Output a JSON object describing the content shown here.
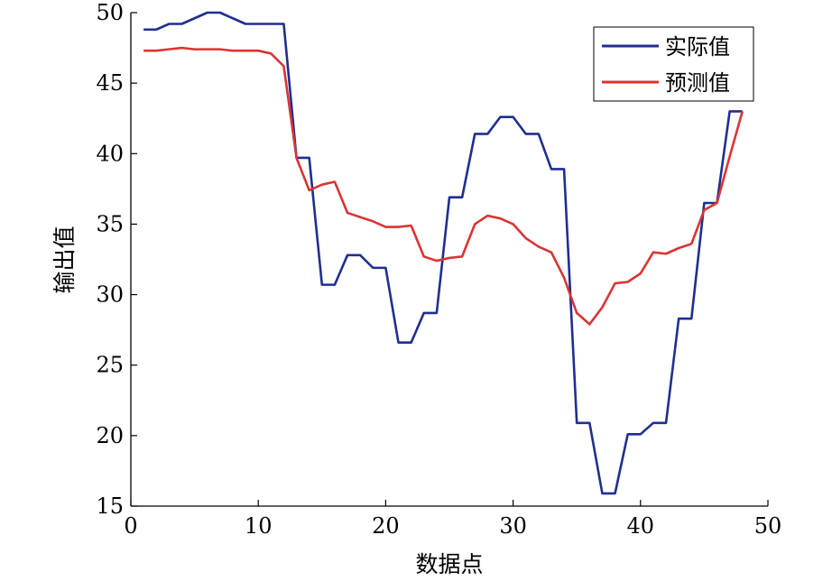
{
  "chart_data": {
    "type": "line",
    "xlabel": "数据点",
    "ylabel": "输出值",
    "xlim": [
      0,
      50
    ],
    "ylim": [
      15,
      50
    ],
    "xticks": [
      "0",
      "10",
      "20",
      "30",
      "40",
      "50"
    ],
    "yticks": [
      "15",
      "20",
      "25",
      "30",
      "35",
      "40",
      "45",
      "50"
    ],
    "grid": false,
    "legend_position": "top-right",
    "series": [
      {
        "name": "实际值",
        "color": "#1f2f8f",
        "x": [
          1,
          2,
          3,
          4,
          5,
          6,
          7,
          8,
          9,
          10,
          11,
          12,
          13,
          14,
          15,
          16,
          17,
          18,
          19,
          20,
          21,
          22,
          23,
          24,
          25,
          26,
          27,
          28,
          29,
          30,
          31,
          32,
          33,
          34,
          35,
          36,
          37,
          38,
          39,
          40,
          41,
          42,
          43,
          44,
          45,
          46,
          47,
          48
        ],
        "y": [
          48.8,
          48.8,
          49.2,
          49.2,
          49.6,
          50.0,
          50.0,
          49.6,
          49.2,
          49.2,
          49.2,
          49.2,
          39.7,
          39.7,
          30.7,
          30.7,
          32.8,
          32.8,
          31.9,
          31.9,
          26.6,
          26.6,
          28.7,
          28.7,
          36.9,
          36.9,
          41.4,
          41.4,
          42.6,
          42.6,
          41.4,
          41.4,
          38.9,
          38.9,
          20.9,
          20.9,
          15.9,
          15.9,
          20.1,
          20.1,
          20.9,
          20.9,
          28.3,
          28.3,
          36.5,
          36.5,
          43.0,
          43.0
        ]
      },
      {
        "name": "预测值",
        "color": "#d93434",
        "x": [
          1,
          2,
          3,
          4,
          5,
          6,
          7,
          8,
          9,
          10,
          11,
          12,
          13,
          14,
          15,
          16,
          17,
          18,
          19,
          20,
          21,
          22,
          23,
          24,
          25,
          26,
          27,
          28,
          29,
          30,
          31,
          32,
          33,
          34,
          35,
          36,
          37,
          38,
          39,
          40,
          41,
          42,
          43,
          44,
          45,
          46,
          47,
          48
        ],
        "y": [
          47.3,
          47.3,
          47.4,
          47.5,
          47.4,
          47.4,
          47.4,
          47.3,
          47.3,
          47.3,
          47.1,
          46.2,
          39.7,
          37.4,
          37.8,
          38.0,
          35.8,
          35.5,
          35.2,
          34.8,
          34.8,
          34.9,
          32.7,
          32.4,
          32.6,
          32.7,
          35.0,
          35.6,
          35.4,
          35.0,
          34.0,
          33.4,
          33.0,
          31.2,
          28.7,
          27.9,
          29.1,
          30.8,
          30.9,
          31.5,
          33.0,
          32.9,
          33.3,
          33.6,
          36.0,
          36.5,
          39.8,
          43.0
        ]
      }
    ]
  }
}
